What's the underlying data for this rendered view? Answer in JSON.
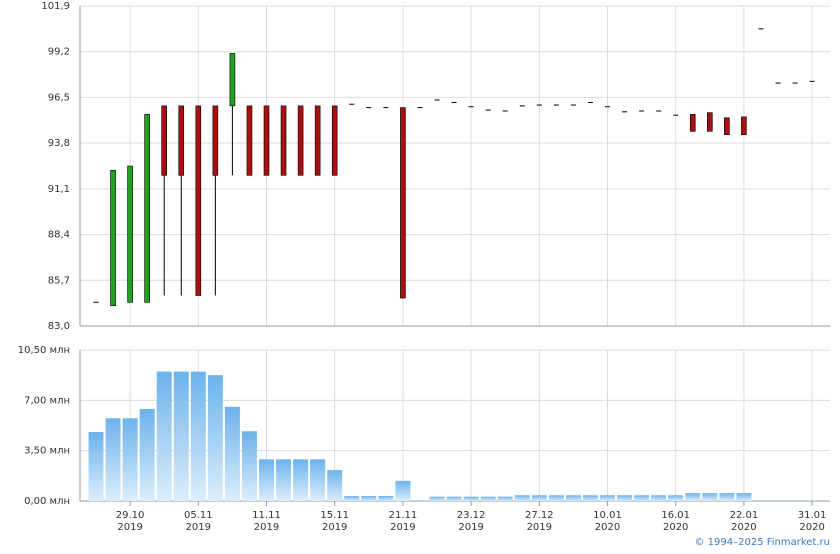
{
  "chart_data": [
    {
      "type": "candlestick",
      "up_color": "#22a022",
      "down_color": "#a81010",
      "flat_color": "#000000",
      "open": [
        84.4,
        84.2,
        84.4,
        84.4,
        96.0,
        96.0,
        96.0,
        96.0,
        96.0,
        96.0,
        96.0,
        96.0,
        96.0,
        96.0,
        96.0,
        96.1,
        95.9,
        95.9,
        95.9,
        95.9,
        96.35,
        96.2,
        95.95,
        95.75,
        95.7,
        96.0,
        96.05,
        96.05,
        96.05,
        96.2,
        95.95,
        95.65,
        95.7,
        95.7,
        95.45,
        95.5,
        95.6,
        95.3,
        95.35,
        100.55,
        97.35,
        97.35,
        97.45
      ],
      "high": [
        84.4,
        92.2,
        92.45,
        95.5,
        96.0,
        96.0,
        96.0,
        96.0,
        99.1,
        96.0,
        96.0,
        96.0,
        96.0,
        96.0,
        96.0,
        96.1,
        95.9,
        95.9,
        95.9,
        95.9,
        96.35,
        96.2,
        95.95,
        95.75,
        95.7,
        96.0,
        96.05,
        96.05,
        96.05,
        96.2,
        95.95,
        95.65,
        95.7,
        95.7,
        95.45,
        95.5,
        95.6,
        95.3,
        95.35,
        100.55,
        97.35,
        97.35,
        97.45
      ],
      "low": [
        84.4,
        84.2,
        84.4,
        84.4,
        84.8,
        84.8,
        84.8,
        84.8,
        91.9,
        91.9,
        91.9,
        91.9,
        91.9,
        91.9,
        91.9,
        96.1,
        95.9,
        95.9,
        84.65,
        95.9,
        96.35,
        96.2,
        95.95,
        95.75,
        95.7,
        96.0,
        96.05,
        96.05,
        96.05,
        96.2,
        95.95,
        95.65,
        95.7,
        95.7,
        95.45,
        94.5,
        94.5,
        94.3,
        94.3,
        100.55,
        97.35,
        97.35,
        97.45
      ],
      "close": [
        84.4,
        92.2,
        92.45,
        95.5,
        91.9,
        91.9,
        84.8,
        91.9,
        99.1,
        91.9,
        91.9,
        91.9,
        91.9,
        91.9,
        91.9,
        96.1,
        95.9,
        95.9,
        84.65,
        95.9,
        96.35,
        96.2,
        95.95,
        95.75,
        95.7,
        96.0,
        96.05,
        96.05,
        96.05,
        96.2,
        95.95,
        95.65,
        95.7,
        95.7,
        95.45,
        94.5,
        94.5,
        94.3,
        94.3,
        100.55,
        97.35,
        97.35,
        97.45
      ],
      "ylim": [
        83,
        101.9
      ],
      "yticks": [
        {
          "value": 83,
          "label": "83,0"
        },
        {
          "value": 85.7,
          "label": "85,7"
        },
        {
          "value": 88.4,
          "label": "88,4"
        },
        {
          "value": 91.1,
          "label": "91,1"
        },
        {
          "value": 93.8,
          "label": "93,8"
        },
        {
          "value": 96.5,
          "label": "96,5"
        },
        {
          "value": 99.2,
          "label": "99,2"
        },
        {
          "value": 101.9,
          "label": "101,9"
        }
      ],
      "grid": true
    },
    {
      "type": "bar",
      "color": "#7ab8ec",
      "categories": [
        null,
        null,
        [
          "29.10",
          "2019"
        ],
        null,
        null,
        null,
        [
          "05.11",
          "2019"
        ],
        null,
        null,
        null,
        [
          "11.11",
          "2019"
        ],
        null,
        null,
        null,
        [
          "15.11",
          "2019"
        ],
        null,
        null,
        null,
        [
          "21.11",
          "2019"
        ],
        null,
        null,
        null,
        [
          "23.12",
          "2019"
        ],
        null,
        null,
        null,
        [
          "27.12",
          "2019"
        ],
        null,
        null,
        null,
        [
          "10.01",
          "2020"
        ],
        null,
        null,
        null,
        [
          "16.01",
          "2020"
        ],
        null,
        null,
        null,
        [
          "22.01",
          "2020"
        ],
        null,
        null,
        null,
        [
          "31.01",
          "2020"
        ]
      ],
      "values": [
        4.8,
        5.75,
        5.75,
        6.4,
        9.0,
        9.0,
        9.0,
        8.75,
        6.55,
        4.85,
        2.9,
        2.9,
        2.9,
        2.9,
        2.15,
        0.35,
        0.35,
        0.35,
        1.4,
        0.05,
        0.3,
        0.3,
        0.3,
        0.3,
        0.3,
        0.4,
        0.4,
        0.4,
        0.4,
        0.4,
        0.4,
        0.4,
        0.4,
        0.4,
        0.4,
        0.55,
        0.55,
        0.55,
        0.55,
        0.05,
        0.05,
        0.05,
        0.05
      ],
      "ylim": [
        0,
        10.5
      ],
      "yticks": [
        {
          "value": 0,
          "label": "0,00 млн"
        },
        {
          "value": 3.5,
          "label": "3,50 млн"
        },
        {
          "value": 7,
          "label": "7,00 млн"
        },
        {
          "value": 10.5,
          "label": "10,50 млн"
        }
      ],
      "grid": true
    }
  ],
  "footer": "© 1994–2025 Finmarket.ru"
}
